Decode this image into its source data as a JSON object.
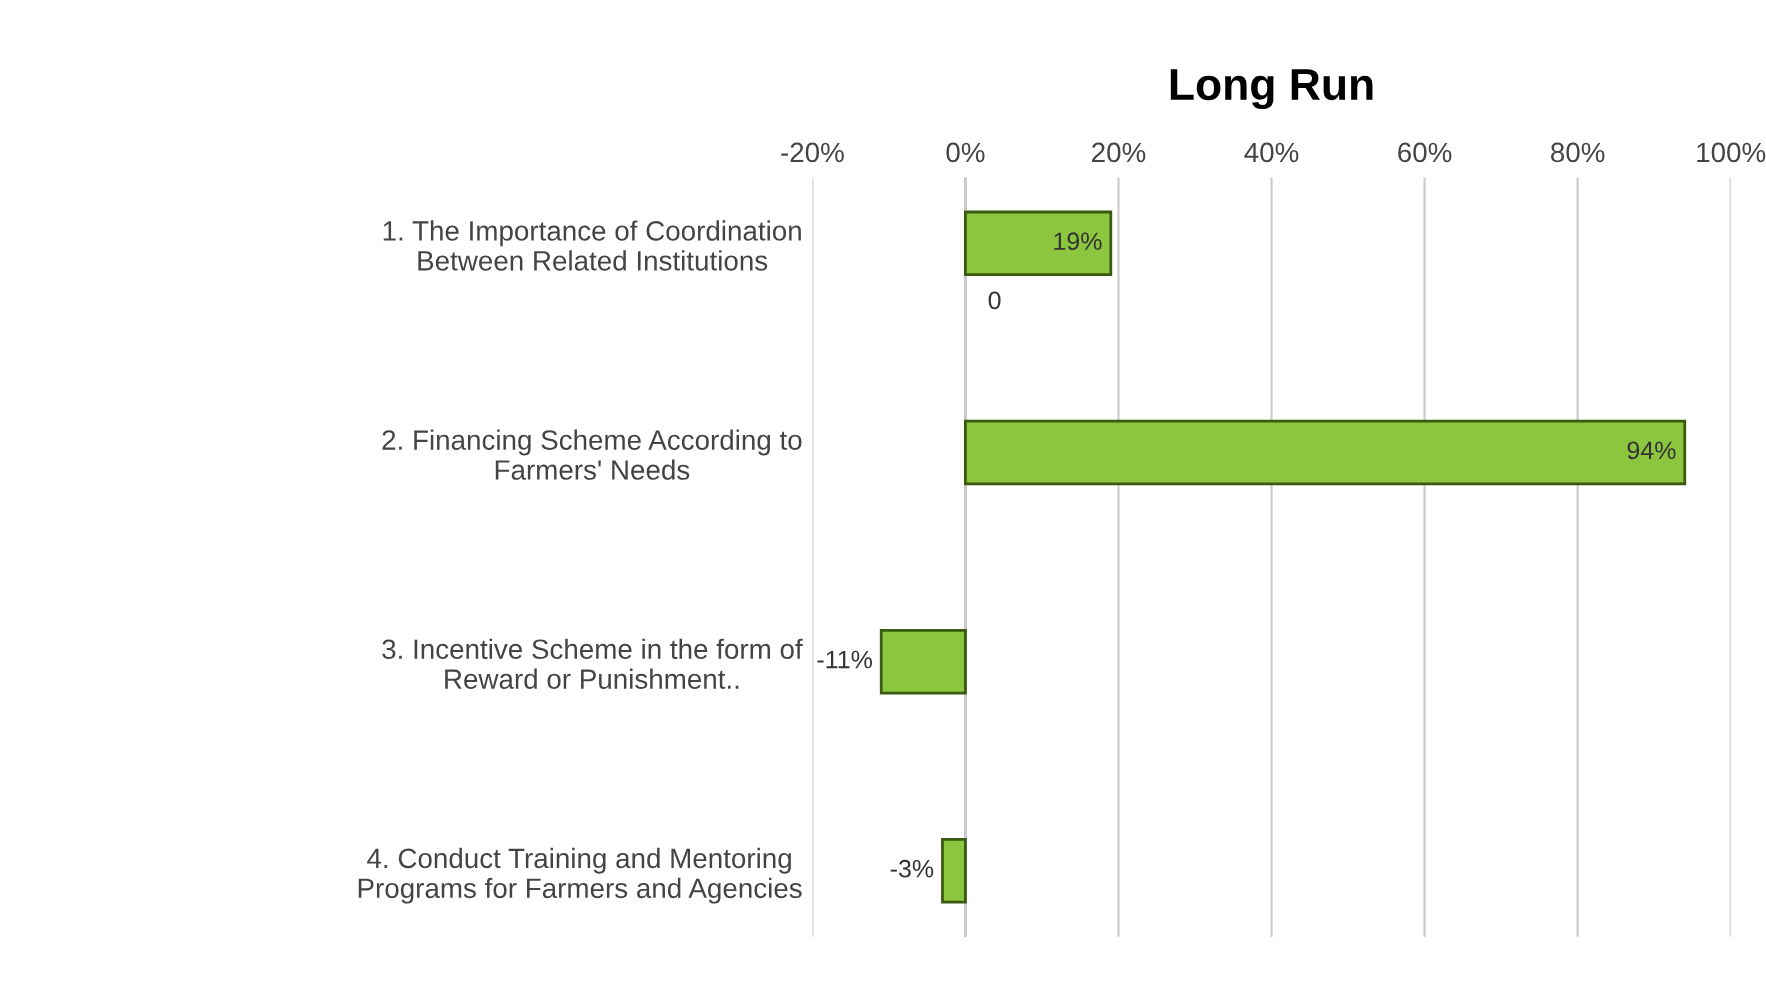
{
  "chart_data": {
    "type": "bar",
    "orientation": "horizontal",
    "title": "Long Run",
    "categories": [
      "1. The Importance of Coordination\nBetween Related Institutions",
      "2. Financing Scheme According to\nFarmers' Needs",
      "3. Incentive Scheme in the form of\nReward or Punishment..",
      "4. Conduct Training and Mentoring\nPrograms for Farmers and Agencies"
    ],
    "values": [
      0.19,
      0.94,
      -0.11,
      -0.03
    ],
    "value_labels": [
      "19%",
      "94%",
      "-11%",
      "-3%"
    ],
    "color": "#8cc63f",
    "xlim": [
      -0.2,
      1.0
    ],
    "xticks": [
      {
        "value": -0.2,
        "label": "-20%"
      },
      {
        "value": 0,
        "label": "0%"
      },
      {
        "value": 0.2,
        "label": "20%"
      },
      {
        "value": 0.4,
        "label": "40%"
      },
      {
        "value": 0.6,
        "label": "60%"
      },
      {
        "value": 0.8,
        "label": "80%"
      },
      {
        "value": 1.0,
        "label": "100%"
      }
    ],
    "grid": "x",
    "annotations": [
      "0"
    ]
  }
}
